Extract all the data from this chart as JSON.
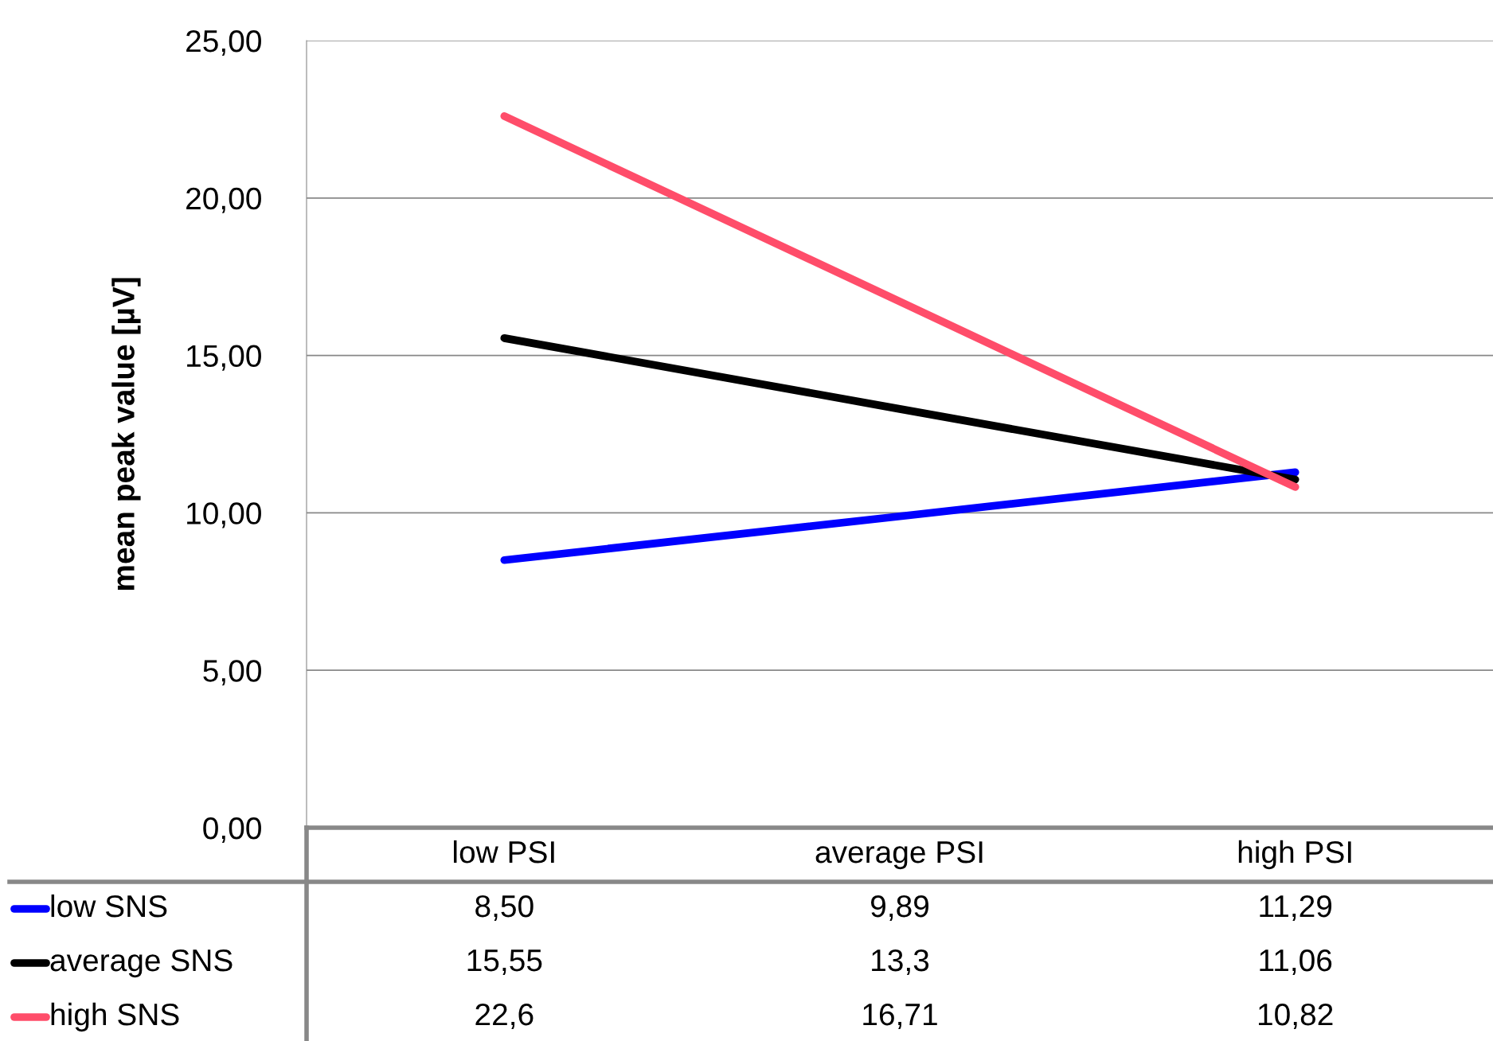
{
  "chart_data": {
    "type": "line",
    "ylabel": "mean peak value [µV]",
    "categories": [
      "low PSI",
      "average PSI",
      "high PSI"
    ],
    "series": [
      {
        "name": "low SNS",
        "color": "#0000ff",
        "values": [
          8.5,
          9.89,
          11.29
        ],
        "value_labels": [
          "8,50",
          "9,89",
          "11,29"
        ]
      },
      {
        "name": "average SNS",
        "color": "#000000",
        "values": [
          15.55,
          13.3,
          11.06
        ],
        "value_labels": [
          "15,55",
          "13,3",
          "11,06"
        ]
      },
      {
        "name": "high SNS",
        "color": "#ff4d6a",
        "values": [
          22.6,
          16.71,
          10.82
        ],
        "value_labels": [
          "22,6",
          "16,71",
          "10,82"
        ]
      }
    ],
    "ylim": [
      0,
      25
    ],
    "yticks": [
      {
        "value": 0,
        "label": "0,00"
      },
      {
        "value": 5,
        "label": "5,00"
      },
      {
        "value": 10,
        "label": "10,00"
      },
      {
        "value": 15,
        "label": "15,00"
      },
      {
        "value": 20,
        "label": "20,00"
      },
      {
        "value": 25,
        "label": "25,00"
      }
    ],
    "grid": "y",
    "legend": "bottom",
    "marker": "none",
    "line_style": "solid"
  }
}
